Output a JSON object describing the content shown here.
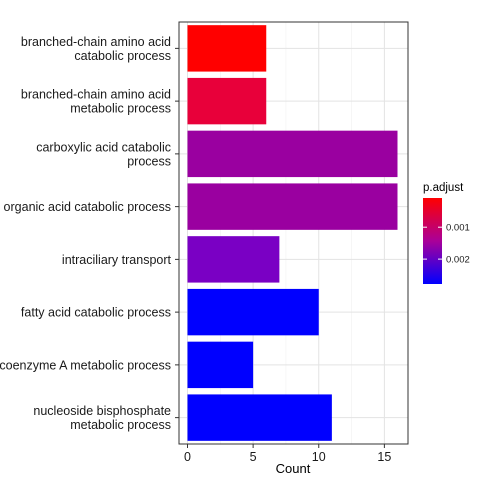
{
  "chart_data": {
    "type": "bar",
    "orientation": "horizontal",
    "title": "",
    "xlabel": "Count",
    "ylabel": "",
    "xlim": [
      0,
      16.8
    ],
    "x_ticks": [
      0,
      5,
      10,
      15
    ],
    "grid": true,
    "legend_placement": "right",
    "legend": {
      "title": "p.adjust",
      "ticks": [
        0.001,
        0.002
      ],
      "tick_labels": [
        "0.001",
        "0.002"
      ],
      "range": [
        8.5e-05,
        0.00278
      ],
      "color_low": "#ff0000",
      "color_high": "#0000ff"
    },
    "bars": [
      {
        "label": [
          "branched-chain amino acid",
          "catabolic process"
        ],
        "count": 6,
        "color": "#ff0000"
      },
      {
        "label": [
          "branched-chain amino acid",
          "metabolic process"
        ],
        "count": 6,
        "color": "#e8003a"
      },
      {
        "label": [
          "carboxylic acid catabolic",
          "process"
        ],
        "count": 16,
        "color": "#9a00a0"
      },
      {
        "label": [
          "organic acid catabolic process"
        ],
        "count": 16,
        "color": "#9a00a0"
      },
      {
        "label": [
          "intraciliary transport"
        ],
        "count": 7,
        "color": "#7a00c4"
      },
      {
        "label": [
          "fatty acid catabolic process"
        ],
        "count": 10,
        "color": "#0000ff"
      },
      {
        "label": [
          "coenzyme A metabolic process"
        ],
        "count": 5,
        "color": "#0000ff"
      },
      {
        "label": [
          "nucleoside bisphosphate",
          "metabolic process"
        ],
        "count": 11,
        "color": "#0000ff"
      }
    ]
  }
}
